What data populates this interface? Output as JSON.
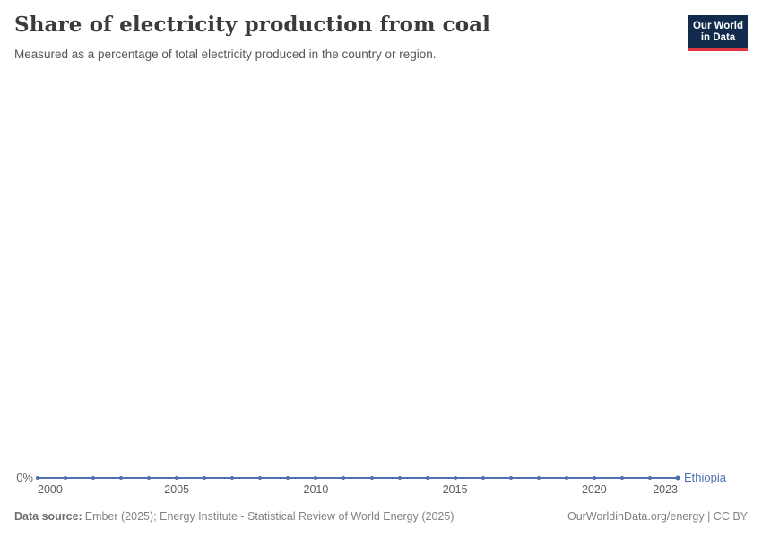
{
  "header": {
    "title": "Share of electricity production from coal",
    "subtitle": "Measured as a percentage of total electricity produced in the country or region.",
    "logo": {
      "line1": "Our World",
      "line2": "in Data"
    }
  },
  "chart_data": {
    "type": "line",
    "title": "Share of electricity production from coal",
    "subtitle": "Measured as a percentage of total electricity produced in the country or region.",
    "x": [
      2000,
      2001,
      2002,
      2003,
      2004,
      2005,
      2006,
      2007,
      2008,
      2009,
      2010,
      2011,
      2012,
      2013,
      2014,
      2015,
      2016,
      2017,
      2018,
      2019,
      2020,
      2021,
      2022,
      2023
    ],
    "series": [
      {
        "name": "Ethiopia",
        "color": "#4f6fb0",
        "values": [
          0,
          0,
          0,
          0,
          0,
          0,
          0,
          0,
          0,
          0,
          0,
          0,
          0,
          0,
          0,
          0,
          0,
          0,
          0,
          0,
          0,
          0,
          0,
          0
        ]
      }
    ],
    "xlabel": "",
    "ylabel": "",
    "xlim": [
      2000,
      2023
    ],
    "ylim": [
      0,
      0
    ],
    "x_ticks": [
      2000,
      2005,
      2010,
      2015,
      2020,
      2023
    ],
    "y_tick_labels": [
      "0%"
    ],
    "grid": false,
    "legend_position": "end-of-line",
    "marker": "dot-every-year"
  },
  "footer": {
    "source_label": "Data source:",
    "source_text": "Ember (2025); Energy Institute - Statistical Review of World Energy (2025)",
    "right_text": "OurWorldinData.org/energy | CC BY"
  }
}
